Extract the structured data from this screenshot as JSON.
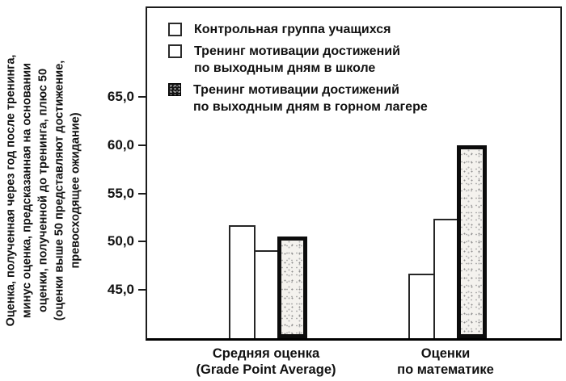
{
  "chart_data": {
    "type": "bar",
    "title": "",
    "ylabel_lines": [
      "Оценка, полученная через год после тренинга,",
      "минус оценка, предсказанная на основании",
      "оценки, полученной до тренинга, плюс 50",
      "(оценки выше 50 представляют достижение,",
      "превосходящее ожидание)"
    ],
    "categories": [
      [
        "Средняя оценка",
        "(Grade Point Average)"
      ],
      [
        "Оценки",
        "по математике"
      ]
    ],
    "series": [
      {
        "name": "Контрольная группа учащихся",
        "label_lines": [
          "Контрольная группа учащихся"
        ],
        "pattern": "outline",
        "values": [
          51.7,
          46.7
        ]
      },
      {
        "name": "Тренинг мотивации достижений по выходным дням в школе",
        "label_lines": [
          "Тренинг мотивации достижений",
          "по выходным дням в школе"
        ],
        "pattern": "outline",
        "values": [
          49.1,
          52.4
        ]
      },
      {
        "name": "Тренинг мотивации достижений по выходным дням в горном лагере",
        "label_lines": [
          "Тренинг мотивации достижений",
          "по выходным дням в горном лагере"
        ],
        "pattern": "dark-speckled",
        "values": [
          50.5,
          60.0
        ]
      }
    ],
    "yticks": {
      "values": [
        45,
        50,
        55,
        60,
        65
      ],
      "labels": [
        "45,0",
        "50,0",
        "55,0",
        "60,0",
        "65,0"
      ]
    },
    "ylim": [
      40,
      74.2
    ],
    "grid": false,
    "legend_position": "top-left-inside",
    "colors": {
      "ink": "#111111",
      "bar_fill": "#ffffff",
      "dark_bar_border": "#0c0c0c",
      "background": "#ffffff"
    }
  }
}
